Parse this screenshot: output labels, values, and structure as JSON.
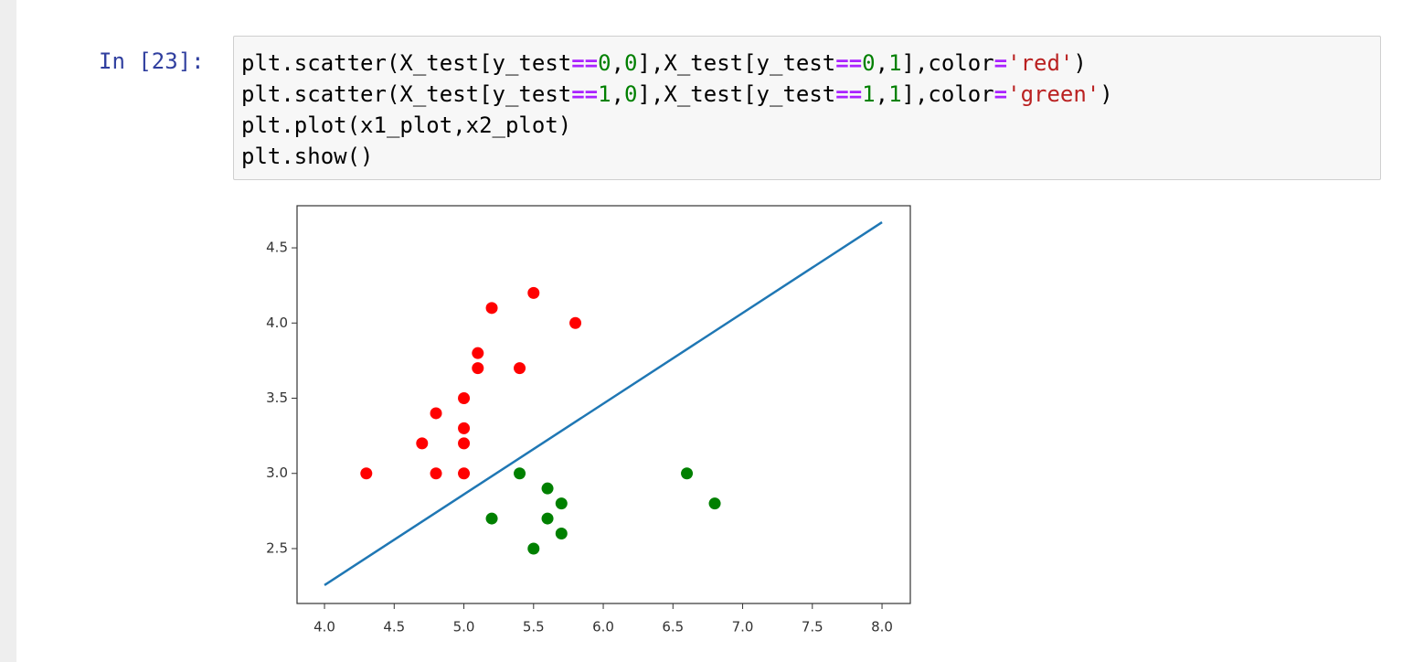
{
  "cell": {
    "prompt": "In [23]:",
    "code": [
      "plt.scatter(X_test[y_test==0,0],X_test[y_test==0,1],color='red')",
      "plt.scatter(X_test[y_test==1,0],X_test[y_test==1,1],color='green')",
      "plt.plot(x1_plot,x2_plot)",
      "plt.show()"
    ]
  },
  "chart_data": {
    "type": "scatter",
    "xlim": [
      3.803,
      8.203
    ],
    "ylim": [
      2.135,
      4.78
    ],
    "xticks": [
      {
        "value": 4,
        "label": "4.0"
      },
      {
        "value": 4.5,
        "label": "4.5"
      },
      {
        "value": 5,
        "label": "5.0"
      },
      {
        "value": 5.5,
        "label": "5.5"
      },
      {
        "value": 6,
        "label": "6.0"
      },
      {
        "value": 6.5,
        "label": "6.5"
      },
      {
        "value": 7,
        "label": "7.0"
      },
      {
        "value": 7.5,
        "label": "7.5"
      },
      {
        "value": 8,
        "label": "8.0"
      }
    ],
    "yticks": [
      {
        "value": 2.5,
        "label": "2.5"
      },
      {
        "value": 3,
        "label": "3.0"
      },
      {
        "value": 3.5,
        "label": "3.5"
      },
      {
        "value": 4,
        "label": "4.0"
      },
      {
        "value": 4.5,
        "label": "4.5"
      }
    ],
    "series": [
      {
        "type": "scatter",
        "color": "#ff0000",
        "x": [
          4.3,
          4.7,
          4.8,
          4.8,
          5.0,
          5.0,
          5.0,
          5.0,
          5.1,
          5.1,
          5.2,
          5.4,
          5.5,
          5.8
        ],
        "values": [
          3.0,
          3.2,
          3.4,
          3.0,
          3.5,
          3.3,
          3.2,
          3.0,
          3.8,
          3.7,
          4.1,
          3.7,
          4.2,
          4.0
        ]
      },
      {
        "type": "scatter",
        "color": "#008000",
        "x": [
          5.2,
          5.4,
          5.5,
          5.6,
          5.6,
          5.7,
          5.7,
          6.6,
          6.8
        ],
        "values": [
          2.7,
          3.0,
          2.5,
          2.9,
          2.7,
          2.8,
          2.6,
          3.0,
          2.8
        ]
      },
      {
        "type": "line",
        "color": "#1f77b4",
        "x": [
          4.0,
          8.0
        ],
        "values": [
          2.257,
          4.67
        ]
      }
    ]
  }
}
